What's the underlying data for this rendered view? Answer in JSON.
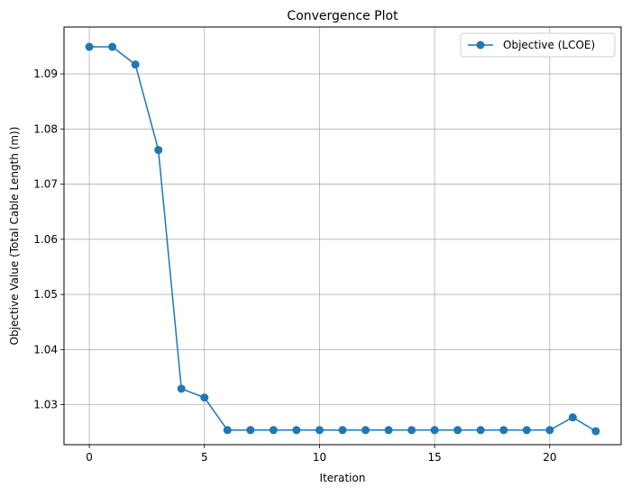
{
  "chart_data": {
    "type": "line",
    "title": "Convergence Plot",
    "xlabel": "Iteration",
    "ylabel": "Objective Value (Total Cable Length (m))",
    "xlim": [
      -1.1,
      23.1
    ],
    "ylim": [
      1.02275,
      1.0985
    ],
    "xticks": [
      0,
      5,
      10,
      15,
      20
    ],
    "yticks": [
      1.03,
      1.04,
      1.05,
      1.06,
      1.07,
      1.08,
      1.09
    ],
    "grid": true,
    "legend_position": "top-right",
    "series": [
      {
        "name": "Objective (LCOE)",
        "color": "#1f77b4",
        "marker": "circle",
        "x": [
          0,
          1,
          2,
          3,
          4,
          5,
          6,
          7,
          8,
          9,
          10,
          11,
          12,
          13,
          14,
          15,
          16,
          17,
          18,
          19,
          20,
          21,
          22
        ],
        "y": [
          1.0949,
          1.0949,
          1.0917,
          1.0762,
          1.0329,
          1.0313,
          1.0254,
          1.0254,
          1.0254,
          1.0254,
          1.0254,
          1.0254,
          1.0254,
          1.0254,
          1.0254,
          1.0254,
          1.0254,
          1.0254,
          1.0254,
          1.0254,
          1.0254,
          1.0277,
          1.0252
        ]
      }
    ]
  }
}
